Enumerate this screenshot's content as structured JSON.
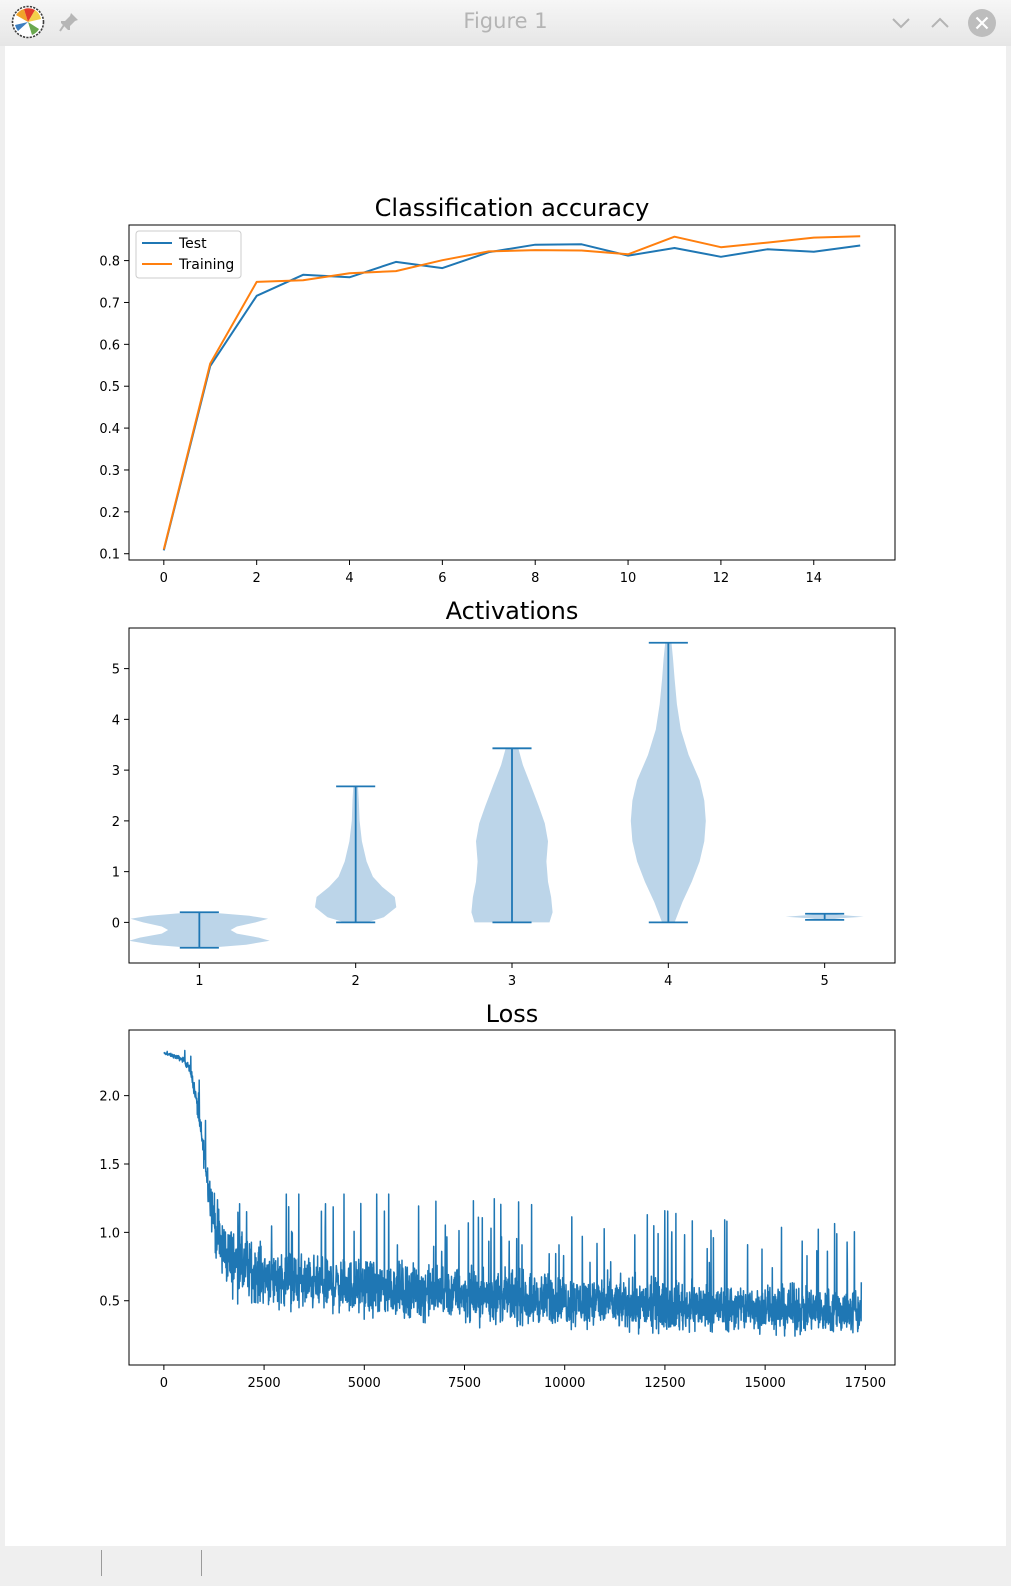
{
  "window": {
    "title": "Figure 1"
  },
  "colors": {
    "c0": "#1f77b4",
    "c1": "#ff7f0e",
    "violin_fill": "#bcd5e9"
  },
  "chart_data": [
    {
      "type": "line",
      "title": "Classification accuracy",
      "xlabel": "",
      "ylabel": "",
      "xlim": [
        -0.75,
        15.75
      ],
      "ylim": [
        0.085,
        0.885
      ],
      "xticks": [
        0,
        2,
        4,
        6,
        8,
        10,
        12,
        14
      ],
      "yticks": [
        0.1,
        0.2,
        0.3,
        0.4,
        0.5,
        0.6,
        0.7,
        0.8
      ],
      "legend": "upper-left",
      "grid": false,
      "x": [
        0,
        1,
        2,
        3,
        4,
        5,
        6,
        7,
        8,
        9,
        10,
        11,
        12,
        13,
        14,
        15
      ],
      "series": [
        {
          "name": "Test",
          "color": "#1f77b4",
          "values": [
            0.108,
            0.548,
            0.716,
            0.766,
            0.76,
            0.797,
            0.782,
            0.82,
            0.838,
            0.839,
            0.812,
            0.83,
            0.809,
            0.827,
            0.821,
            0.836
          ]
        },
        {
          "name": "Training",
          "color": "#ff7f0e",
          "values": [
            0.11,
            0.554,
            0.749,
            0.753,
            0.77,
            0.775,
            0.801,
            0.822,
            0.825,
            0.824,
            0.815,
            0.857,
            0.832,
            0.843,
            0.855,
            0.858
          ]
        }
      ]
    },
    {
      "type": "violin",
      "title": "Activations",
      "xlabel": "",
      "ylabel": "",
      "xlim": [
        0.55,
        5.45
      ],
      "ylim": [
        -0.8,
        5.8
      ],
      "xticks": [
        1,
        2,
        3,
        4,
        5
      ],
      "yticks": [
        0,
        1,
        2,
        3,
        4,
        5
      ],
      "grid": false,
      "violins": [
        {
          "position": 1,
          "min": -0.5,
          "max": 0.2,
          "profile": [
            [
              -0.5,
              0.06
            ],
            [
              -0.44,
              0.3
            ],
            [
              -0.36,
              0.45
            ],
            [
              -0.3,
              0.38
            ],
            [
              -0.22,
              0.24
            ],
            [
              -0.15,
              0.2
            ],
            [
              -0.08,
              0.24
            ],
            [
              0.0,
              0.36
            ],
            [
              0.07,
              0.44
            ],
            [
              0.13,
              0.32
            ],
            [
              0.2,
              0.05
            ]
          ]
        },
        {
          "position": 2,
          "min": 0.0,
          "max": 2.68,
          "profile": [
            [
              0.0,
              0.07
            ],
            [
              0.1,
              0.18
            ],
            [
              0.3,
              0.26
            ],
            [
              0.5,
              0.25
            ],
            [
              0.7,
              0.17
            ],
            [
              0.9,
              0.11
            ],
            [
              1.2,
              0.07
            ],
            [
              1.6,
              0.04
            ],
            [
              2.0,
              0.025
            ],
            [
              2.4,
              0.02
            ],
            [
              2.68,
              0.015
            ]
          ]
        },
        {
          "position": 3,
          "min": 0.0,
          "max": 3.43,
          "profile": [
            [
              0.0,
              0.24
            ],
            [
              0.2,
              0.26
            ],
            [
              0.5,
              0.25
            ],
            [
              0.8,
              0.23
            ],
            [
              1.2,
              0.22
            ],
            [
              1.6,
              0.23
            ],
            [
              1.95,
              0.21
            ],
            [
              2.3,
              0.17
            ],
            [
              2.7,
              0.12
            ],
            [
              3.1,
              0.07
            ],
            [
              3.43,
              0.04
            ]
          ]
        },
        {
          "position": 4,
          "min": 0.0,
          "max": 5.51,
          "profile": [
            [
              0.0,
              0.04
            ],
            [
              0.4,
              0.09
            ],
            [
              0.8,
              0.15
            ],
            [
              1.2,
              0.2
            ],
            [
              1.6,
              0.23
            ],
            [
              2.0,
              0.24
            ],
            [
              2.4,
              0.23
            ],
            [
              2.8,
              0.2
            ],
            [
              3.3,
              0.13
            ],
            [
              3.8,
              0.08
            ],
            [
              4.3,
              0.055
            ],
            [
              4.8,
              0.04
            ],
            [
              5.2,
              0.03
            ],
            [
              5.51,
              0.02
            ]
          ]
        },
        {
          "position": 5,
          "min": 0.05,
          "max": 0.17,
          "profile": [
            [
              0.05,
              0.02
            ],
            [
              0.08,
              0.1
            ],
            [
              0.11,
              0.25
            ],
            [
              0.14,
              0.12
            ],
            [
              0.17,
              0.03
            ]
          ]
        }
      ]
    },
    {
      "type": "line",
      "title": "Loss",
      "xlabel": "",
      "ylabel": "",
      "xlim": [
        -870,
        18240
      ],
      "ylim": [
        0.03,
        2.48
      ],
      "xticks": [
        0,
        2500,
        5000,
        7500,
        10000,
        12500,
        15000,
        17500
      ],
      "xtick_labels": [
        "0",
        "2500",
        "5000",
        "7500",
        "10000",
        "12500",
        "15000",
        "17500"
      ],
      "yticks": [
        0.5,
        1.0,
        1.5,
        2.0
      ],
      "grid": false,
      "series": [
        {
          "color": "#1f77b4",
          "x": [
            0,
            250,
            500,
            600,
            700,
            800,
            900,
            1000,
            1100,
            1200,
            1300,
            1400,
            1500,
            1700,
            2000,
            2500,
            3000,
            4000,
            5000,
            6000,
            7000,
            8000,
            9000,
            10000,
            11000,
            12000,
            13000,
            14000,
            15000,
            16000,
            17000,
            17400
          ],
          "center": [
            2.31,
            2.29,
            2.26,
            2.22,
            2.14,
            1.98,
            1.78,
            1.58,
            1.38,
            1.18,
            1.02,
            0.92,
            0.86,
            0.8,
            0.74,
            0.69,
            0.66,
            0.62,
            0.6,
            0.58,
            0.56,
            0.54,
            0.52,
            0.5,
            0.48,
            0.47,
            0.46,
            0.45,
            0.44,
            0.43,
            0.42,
            0.42
          ],
          "spread": [
            0.01,
            0.02,
            0.03,
            0.04,
            0.06,
            0.08,
            0.12,
            0.15,
            0.2,
            0.26,
            0.3,
            0.32,
            0.33,
            0.33,
            0.32,
            0.3,
            0.29,
            0.28,
            0.28,
            0.28,
            0.27,
            0.27,
            0.27,
            0.26,
            0.26,
            0.26,
            0.26,
            0.25,
            0.25,
            0.25,
            0.25,
            0.25
          ],
          "ymin_observed": 0.13,
          "ymax_after_2000": 1.28
        }
      ]
    }
  ]
}
